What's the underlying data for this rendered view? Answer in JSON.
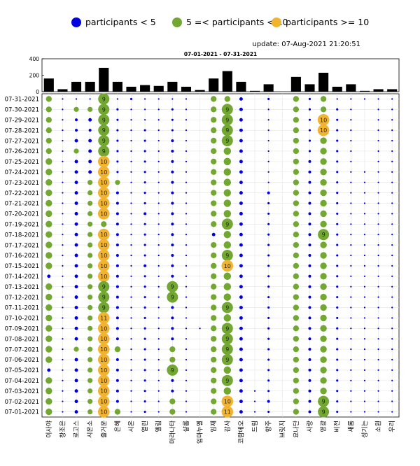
{
  "legend": [
    {
      "label": "participants < 5",
      "color": "#0000e0"
    },
    {
      "label": "5 =< participants < 10",
      "color": "#72a832"
    },
    {
      "label": "participants >= 10",
      "color": "#f2b430"
    }
  ],
  "update_text": "update: 07-Aug-2021 21:20:51",
  "chart_data": {
    "type": "bubble-matrix",
    "title": "07-01-2021  - 07-31-2021",
    "bar_ylim": [
      0,
      400
    ],
    "bar_yticks": [
      0,
      200,
      400
    ],
    "columns": [
      "이사야",
      "창조은",
      "로고스",
      "시온소",
      "즐거운",
      "은혜",
      "시온",
      "열린",
      "엘림",
      "마라나타",
      "샬롬",
      "임마누엘",
      "임재",
      "감사",
      "코람데오",
      "드림",
      "향주",
      "브릿지",
      "요나단",
      "사랑",
      "영광",
      "비전",
      "새롬",
      "성기는",
      "소원",
      "우리"
    ],
    "bar_values": [
      160,
      30,
      120,
      120,
      290,
      120,
      60,
      80,
      70,
      120,
      60,
      20,
      160,
      250,
      120,
      10,
      90,
      0,
      180,
      90,
      230,
      60,
      90,
      10,
      30,
      30
    ],
    "rows": [
      "07-31-2021",
      "07-30-2021",
      "07-29-2021",
      "07-28-2021",
      "07-27-2021",
      "07-26-2021",
      "07-25-2021",
      "07-24-2021",
      "07-23-2021",
      "07-22-2021",
      "07-21-2021",
      "07-20-2021",
      "07-19-2021",
      "07-18-2021",
      "07-17-2021",
      "07-16-2021",
      "07-15-2021",
      "07-14-2021",
      "07-13-2021",
      "07-12-2021",
      "07-11-2021",
      "07-10-2021",
      "07-09-2021",
      "07-08-2021",
      "07-07-2021",
      "07-06-2021",
      "07-05-2021",
      "07-04-2021",
      "07-03-2021",
      "07-02-2021",
      "07-01-2021"
    ],
    "matrix": [
      [
        6,
        1,
        1,
        1,
        9,
        1,
        2,
        1,
        1,
        1,
        1,
        0,
        6,
        6,
        4,
        0,
        2,
        0,
        6,
        2,
        6,
        1,
        1,
        1,
        1,
        1
      ],
      [
        6,
        1,
        5,
        5,
        9,
        2,
        1,
        1,
        1,
        2,
        1,
        0,
        6,
        9,
        4,
        0,
        1,
        0,
        6,
        2,
        6,
        2,
        1,
        0,
        1,
        1
      ],
      [
        6,
        1,
        3,
        4,
        9,
        2,
        1,
        1,
        1,
        2,
        1,
        0,
        6,
        9,
        4,
        0,
        1,
        0,
        6,
        2,
        10,
        2,
        1,
        0,
        1,
        1
      ],
      [
        6,
        1,
        3,
        3,
        9,
        2,
        1,
        2,
        1,
        2,
        1,
        0,
        6,
        9,
        4,
        0,
        1,
        0,
        6,
        2,
        10,
        2,
        1,
        0,
        1,
        1
      ],
      [
        6,
        1,
        4,
        4,
        9,
        2,
        1,
        2,
        1,
        3,
        1,
        0,
        6,
        9,
        4,
        0,
        1,
        0,
        6,
        2,
        7,
        2,
        1,
        0,
        1,
        1
      ],
      [
        6,
        1,
        5,
        4,
        9,
        2,
        1,
        2,
        1,
        3,
        1,
        0,
        6,
        8,
        4,
        0,
        1,
        0,
        6,
        2,
        7,
        2,
        1,
        0,
        1,
        1
      ],
      [
        7,
        1,
        4,
        4,
        10,
        2,
        1,
        2,
        1,
        3,
        1,
        0,
        6,
        8,
        4,
        0,
        1,
        0,
        6,
        3,
        7,
        2,
        1,
        0,
        1,
        1
      ],
      [
        7,
        1,
        4,
        4,
        10,
        2,
        1,
        2,
        1,
        3,
        1,
        0,
        6,
        8,
        4,
        0,
        1,
        0,
        6,
        3,
        7,
        2,
        1,
        1,
        1,
        1
      ],
      [
        7,
        1,
        4,
        5,
        10,
        5,
        1,
        2,
        1,
        3,
        1,
        0,
        6,
        8,
        4,
        0,
        1,
        0,
        6,
        3,
        7,
        2,
        1,
        1,
        1,
        1
      ],
      [
        7,
        1,
        4,
        5,
        10,
        3,
        1,
        2,
        1,
        3,
        1,
        0,
        6,
        8,
        4,
        0,
        3,
        0,
        6,
        3,
        7,
        2,
        1,
        1,
        1,
        1
      ],
      [
        7,
        1,
        4,
        5,
        10,
        3,
        1,
        2,
        1,
        3,
        1,
        0,
        6,
        8,
        4,
        0,
        2,
        0,
        6,
        3,
        7,
        2,
        1,
        1,
        1,
        1
      ],
      [
        7,
        1,
        4,
        5,
        10,
        3,
        1,
        3,
        1,
        3,
        1,
        0,
        6,
        8,
        4,
        0,
        2,
        0,
        6,
        3,
        7,
        2,
        1,
        1,
        1,
        1
      ],
      [
        7,
        1,
        4,
        5,
        6,
        3,
        1,
        2,
        1,
        3,
        1,
        0,
        6,
        9,
        4,
        0,
        2,
        0,
        6,
        3,
        7,
        2,
        1,
        1,
        1,
        1
      ],
      [
        7,
        1,
        4,
        5,
        10,
        3,
        1,
        2,
        1,
        3,
        1,
        0,
        4,
        8,
        4,
        0,
        2,
        0,
        6,
        3,
        9,
        2,
        1,
        1,
        1,
        1
      ],
      [
        7,
        1,
        4,
        5,
        10,
        3,
        1,
        2,
        1,
        3,
        1,
        0,
        6,
        8,
        4,
        0,
        2,
        0,
        6,
        3,
        7,
        2,
        1,
        1,
        1,
        1
      ],
      [
        7,
        1,
        4,
        5,
        10,
        3,
        1,
        2,
        1,
        3,
        1,
        0,
        6,
        9,
        4,
        0,
        2,
        0,
        6,
        3,
        7,
        2,
        1,
        1,
        1,
        1
      ],
      [
        7,
        1,
        4,
        5,
        10,
        3,
        1,
        3,
        1,
        3,
        1,
        0,
        6,
        10,
        4,
        0,
        2,
        0,
        6,
        3,
        7,
        2,
        1,
        1,
        1,
        1
      ],
      [
        4,
        1,
        4,
        5,
        10,
        3,
        1,
        2,
        1,
        3,
        1,
        0,
        6,
        8,
        4,
        0,
        2,
        0,
        6,
        3,
        7,
        2,
        1,
        1,
        1,
        1
      ],
      [
        7,
        1,
        4,
        5,
        9,
        3,
        1,
        2,
        1,
        9,
        1,
        0,
        6,
        8,
        4,
        0,
        2,
        0,
        6,
        3,
        7,
        2,
        1,
        1,
        1,
        1
      ],
      [
        7,
        1,
        4,
        5,
        9,
        3,
        1,
        2,
        1,
        9,
        1,
        0,
        6,
        8,
        4,
        0,
        2,
        0,
        6,
        3,
        7,
        2,
        1,
        1,
        1,
        1
      ],
      [
        7,
        1,
        4,
        5,
        9,
        3,
        1,
        2,
        1,
        3,
        1,
        0,
        6,
        9,
        4,
        0,
        2,
        0,
        6,
        3,
        7,
        2,
        1,
        1,
        1,
        1
      ],
      [
        7,
        1,
        4,
        5,
        11,
        3,
        1,
        2,
        1,
        3,
        1,
        0,
        6,
        8,
        4,
        0,
        2,
        0,
        6,
        3,
        7,
        2,
        1,
        1,
        1,
        1
      ],
      [
        7,
        1,
        4,
        5,
        10,
        3,
        1,
        2,
        1,
        3,
        1,
        1,
        6,
        9,
        4,
        0,
        2,
        0,
        6,
        3,
        7,
        2,
        1,
        1,
        1,
        1
      ],
      [
        7,
        1,
        4,
        5,
        10,
        3,
        1,
        2,
        1,
        3,
        1,
        0,
        6,
        9,
        4,
        0,
        2,
        0,
        6,
        3,
        7,
        2,
        1,
        1,
        1,
        1
      ],
      [
        7,
        1,
        5,
        5,
        10,
        6,
        1,
        2,
        1,
        6,
        1,
        0,
        6,
        9,
        4,
        0,
        2,
        0,
        6,
        3,
        7,
        2,
        1,
        1,
        1,
        1
      ],
      [
        7,
        1,
        4,
        5,
        10,
        3,
        1,
        2,
        1,
        6,
        1,
        0,
        6,
        9,
        4,
        0,
        2,
        0,
        6,
        3,
        7,
        2,
        1,
        1,
        1,
        1
      ],
      [
        4,
        1,
        4,
        5,
        10,
        3,
        1,
        2,
        1,
        9,
        1,
        0,
        6,
        8,
        4,
        0,
        2,
        0,
        6,
        3,
        7,
        2,
        1,
        1,
        1,
        1
      ],
      [
        7,
        1,
        4,
        5,
        10,
        3,
        1,
        2,
        1,
        3,
        1,
        0,
        6,
        9,
        4,
        0,
        2,
        0,
        6,
        3,
        7,
        2,
        1,
        1,
        1,
        1
      ],
      [
        7,
        1,
        4,
        5,
        10,
        3,
        1,
        2,
        1,
        3,
        1,
        0,
        6,
        8,
        4,
        1,
        2,
        0,
        6,
        3,
        7,
        2,
        1,
        1,
        1,
        1
      ],
      [
        7,
        1,
        4,
        5,
        10,
        3,
        1,
        2,
        1,
        6,
        1,
        0,
        6,
        10,
        4,
        1,
        3,
        0,
        6,
        3,
        9,
        2,
        1,
        1,
        1,
        1
      ],
      [
        7,
        1,
        4,
        5,
        10,
        6,
        1,
        2,
        1,
        6,
        1,
        0,
        6,
        11,
        4,
        1,
        2,
        0,
        6,
        3,
        9,
        2,
        1,
        1,
        1,
        1
      ]
    ]
  }
}
